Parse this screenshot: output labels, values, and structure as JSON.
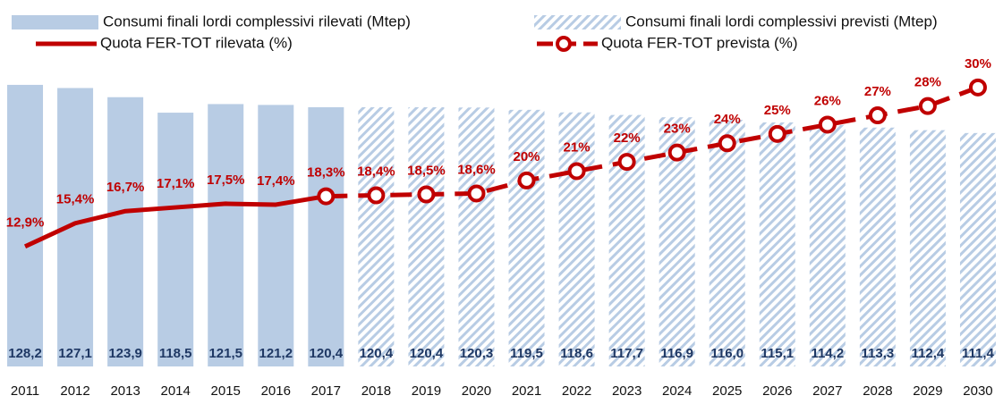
{
  "chart_data": {
    "type": "bar",
    "categories": [
      "2011",
      "2012",
      "2013",
      "2014",
      "2015",
      "2016",
      "2017",
      "2018",
      "2019",
      "2020",
      "2021",
      "2022",
      "2023",
      "2024",
      "2025",
      "2026",
      "2027",
      "2028",
      "2029",
      "2030"
    ],
    "ylim": [
      30,
      150
    ],
    "y2lim": [
      0,
      37
    ],
    "series": [
      {
        "name": "Consumi finali lordi complessivi rilevati (Mtep)",
        "type": "bar",
        "color": "#b8cce4",
        "hatch": false,
        "values": [
          128.2,
          127.1,
          123.9,
          118.5,
          121.5,
          121.2,
          120.4,
          null,
          null,
          null,
          null,
          null,
          null,
          null,
          null,
          null,
          null,
          null,
          null,
          null
        ],
        "value_labels": [
          "128,2",
          "127,1",
          "123,9",
          "118,5",
          "121,5",
          "121,2",
          "120,4",
          null,
          null,
          null,
          null,
          null,
          null,
          null,
          null,
          null,
          null,
          null,
          null,
          null
        ]
      },
      {
        "name": "Consumi finali lordi complessivi previsti (Mtep)",
        "type": "bar",
        "color": "#b8cce4",
        "hatch": true,
        "values": [
          null,
          null,
          null,
          null,
          null,
          null,
          null,
          120.4,
          120.4,
          120.3,
          119.5,
          118.6,
          117.7,
          116.9,
          116.0,
          115.1,
          114.2,
          113.3,
          112.4,
          111.4
        ],
        "value_labels": [
          null,
          null,
          null,
          null,
          null,
          null,
          null,
          "120,4",
          "120,4",
          "120,3",
          "119,5",
          "118,6",
          "117,7",
          "116,9",
          "116,0",
          "115,1",
          "114,2",
          "113,3",
          "112,4",
          "111,4"
        ]
      },
      {
        "name": "Quota FER-TOT rilevata (%)",
        "type": "line",
        "axis": "y2",
        "color": "#c00000",
        "dashed": false,
        "markers": false,
        "values": [
          12.9,
          15.4,
          16.7,
          17.1,
          17.5,
          17.4,
          18.3,
          null,
          null,
          null,
          null,
          null,
          null,
          null,
          null,
          null,
          null,
          null,
          null,
          null
        ],
        "value_labels": [
          "12,9%",
          "15,4%",
          "16,7%",
          "17,1%",
          "17,5%",
          "17,4%",
          "18,3%",
          null,
          null,
          null,
          null,
          null,
          null,
          null,
          null,
          null,
          null,
          null,
          null,
          null
        ]
      },
      {
        "name": "Quota FER-TOT prevista (%)",
        "type": "line",
        "axis": "y2",
        "color": "#c00000",
        "dashed": true,
        "markers": true,
        "values": [
          null,
          null,
          null,
          null,
          null,
          null,
          18.3,
          18.4,
          18.5,
          18.6,
          20,
          21,
          22,
          23,
          24,
          25,
          26,
          27,
          28,
          30
        ],
        "value_labels": [
          null,
          null,
          null,
          null,
          null,
          null,
          null,
          "18,4%",
          "18,5%",
          "18,6%",
          "20%",
          "21%",
          "22%",
          "23%",
          "24%",
          "25%",
          "26%",
          "27%",
          "28%",
          "30%"
        ]
      }
    ]
  }
}
